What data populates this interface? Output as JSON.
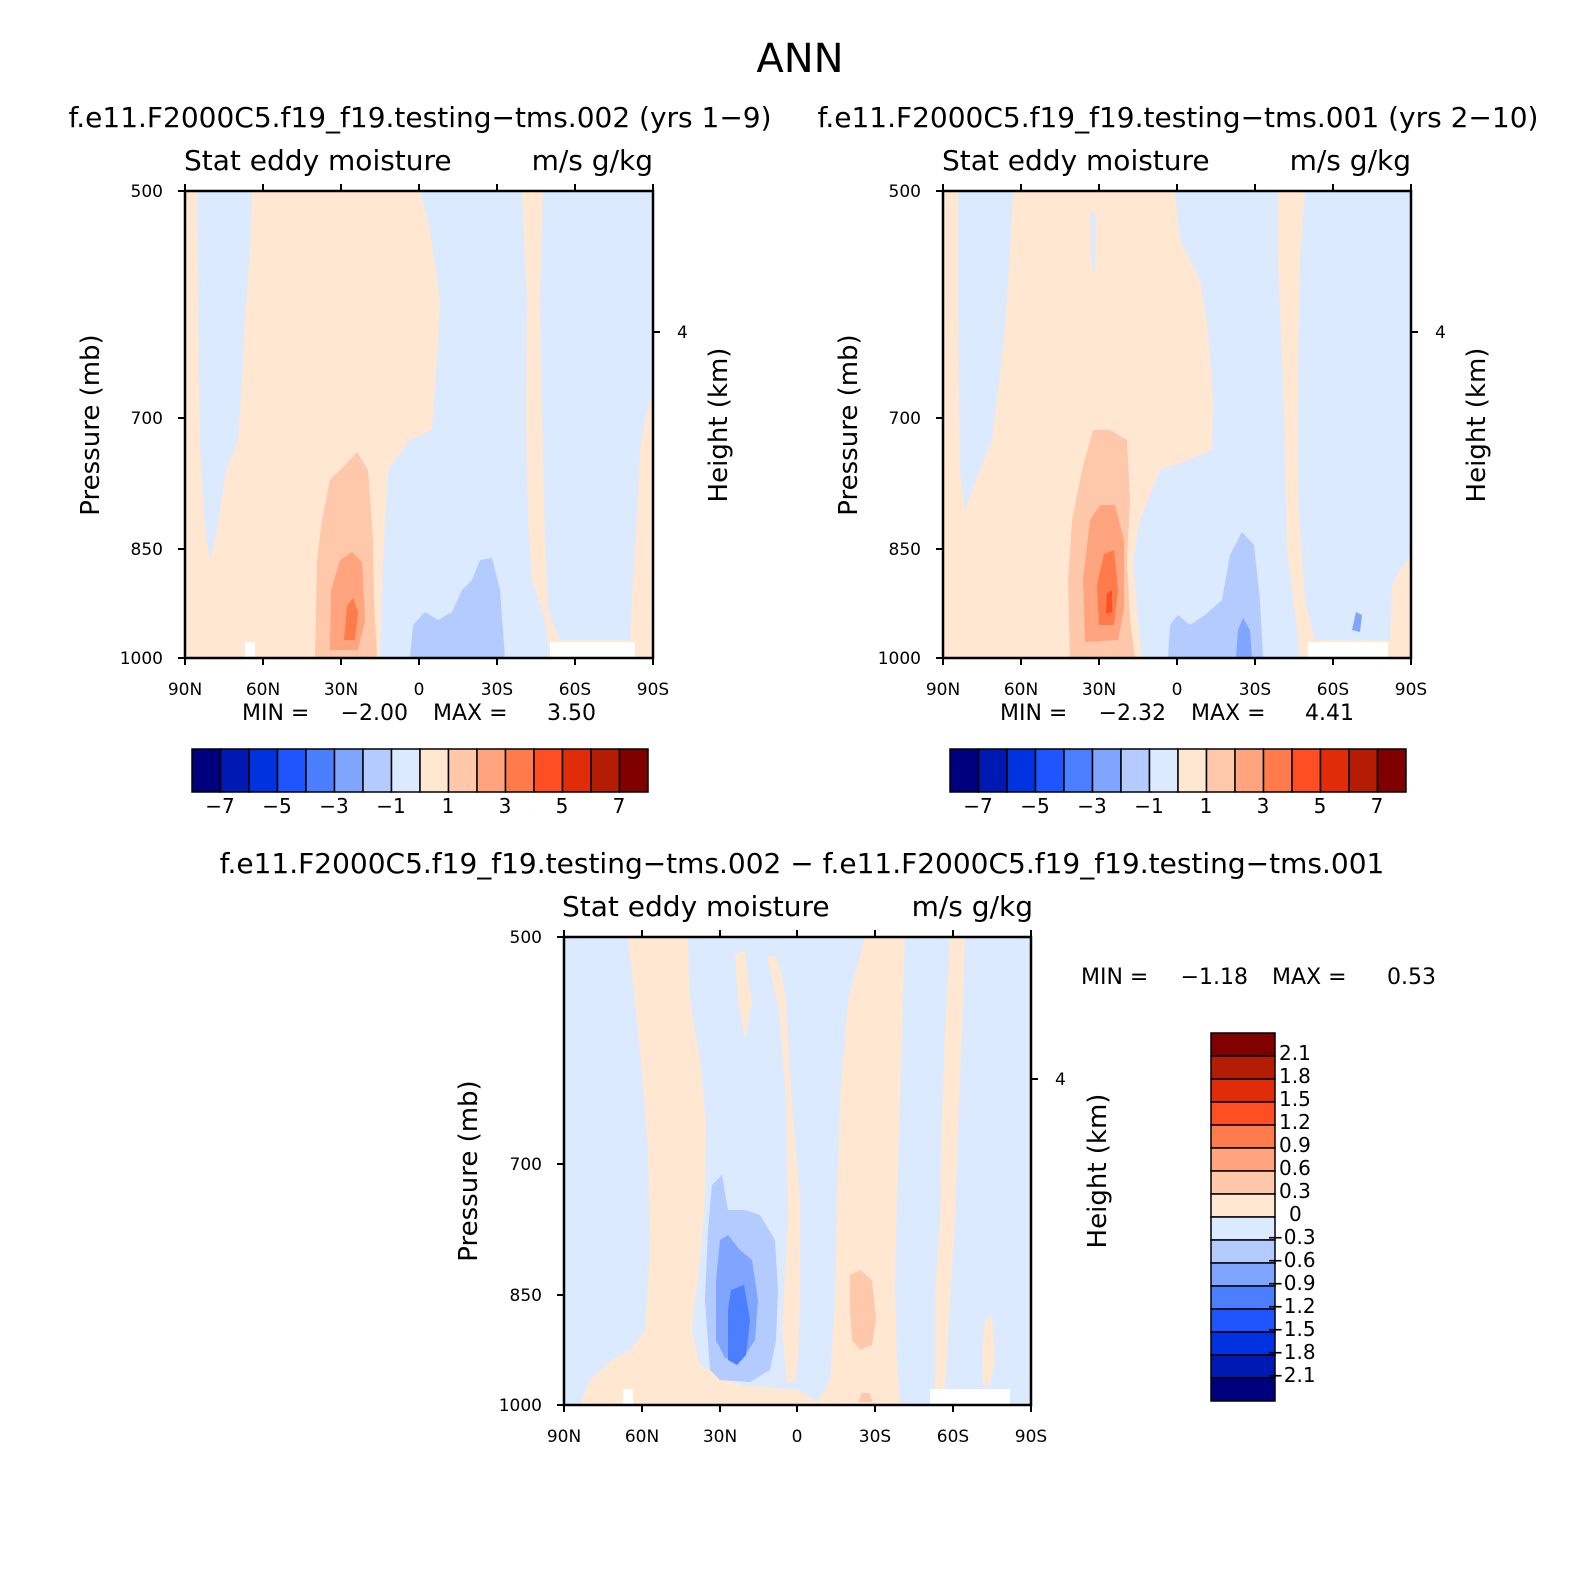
{
  "page": {
    "title": "ANN"
  },
  "chart_data": [
    {
      "type": "heatmap",
      "panel": "top-left",
      "title": "f.e11.F2000C5.f19_f19.testing−tms.002 (yrs 1−9)",
      "subtitle_left": "Stat eddy moisture",
      "subtitle_right": "m/s g/kg",
      "ylabel": "Pressure (mb)",
      "y2label": "Height (km)",
      "x_ticks": [
        "90N",
        "60N",
        "30N",
        "0",
        "30S",
        "60S",
        "90S"
      ],
      "y_ticks": [
        "500",
        "700",
        "850",
        "1000"
      ],
      "y2_ticks": [
        "4"
      ],
      "ylim": [
        1000,
        500
      ],
      "y_log": true,
      "stats": {
        "min_label": "MIN =",
        "min": "−2.00",
        "max_label": "MAX =",
        "max": "3.50"
      },
      "levels": [
        -7,
        -6,
        -5,
        -4,
        -3,
        -2,
        -1,
        0,
        1,
        2,
        3,
        4,
        5,
        6,
        7
      ],
      "colorbar_labels": [
        "−7",
        "−5",
        "−3",
        "−1",
        "1",
        "3",
        "5",
        "7"
      ],
      "colorbar_orientation": "horizontal"
    },
    {
      "type": "heatmap",
      "panel": "top-right",
      "title": "f.e11.F2000C5.f19_f19.testing−tms.001 (yrs 2−10)",
      "subtitle_left": "Stat eddy moisture",
      "subtitle_right": "m/s g/kg",
      "ylabel": "Pressure (mb)",
      "y2label": "Height (km)",
      "x_ticks": [
        "90N",
        "60N",
        "30N",
        "0",
        "30S",
        "60S",
        "90S"
      ],
      "y_ticks": [
        "500",
        "700",
        "850",
        "1000"
      ],
      "y2_ticks": [
        "4"
      ],
      "ylim": [
        1000,
        500
      ],
      "y_log": true,
      "stats": {
        "min_label": "MIN =",
        "min": "−2.32",
        "max_label": "MAX =",
        "max": "4.41"
      },
      "levels": [
        -7,
        -6,
        -5,
        -4,
        -3,
        -2,
        -1,
        0,
        1,
        2,
        3,
        4,
        5,
        6,
        7
      ],
      "colorbar_labels": [
        "−7",
        "−5",
        "−3",
        "−1",
        "1",
        "3",
        "5",
        "7"
      ],
      "colorbar_orientation": "horizontal"
    },
    {
      "type": "heatmap",
      "panel": "bottom",
      "title": "f.e11.F2000C5.f19_f19.testing−tms.002 − f.e11.F2000C5.f19_f19.testing−tms.001",
      "subtitle_left": "Stat eddy moisture",
      "subtitle_right": "m/s g/kg",
      "ylabel": "Pressure (mb)",
      "y2label": "Height (km)",
      "x_ticks": [
        "90N",
        "60N",
        "30N",
        "0",
        "30S",
        "60S",
        "90S"
      ],
      "y_ticks": [
        "500",
        "700",
        "850",
        "1000"
      ],
      "y2_ticks": [
        "4"
      ],
      "ylim": [
        1000,
        500
      ],
      "y_log": true,
      "stats": {
        "min_label": "MIN =",
        "min": "−1.18",
        "max_label": "MAX =",
        "max": "0.53"
      },
      "levels": [
        -2.1,
        -1.8,
        -1.5,
        -1.2,
        -0.9,
        -0.6,
        -0.3,
        0,
        0.3,
        0.6,
        0.9,
        1.2,
        1.5,
        1.8,
        2.1
      ],
      "colorbar_labels": [
        "2.1",
        "1.8",
        "1.5",
        "1.2",
        "0.9",
        "0.6",
        "0.3",
        "0",
        "−0.3",
        "−0.6",
        "−0.9",
        "−1.2",
        "−1.5",
        "−1.8",
        "−2.1"
      ],
      "colorbar_orientation": "vertical"
    }
  ],
  "colors": {
    "palette": [
      "#00007f",
      "#0019b2",
      "#0032e0",
      "#1e55ff",
      "#4c7fff",
      "#80a5ff",
      "#b4cbff",
      "#dbeaff",
      "#ffe7d2",
      "#ffc8aa",
      "#ffa47e",
      "#ff7b4c",
      "#ff4e22",
      "#e02c08",
      "#b41c04",
      "#800000"
    ]
  }
}
